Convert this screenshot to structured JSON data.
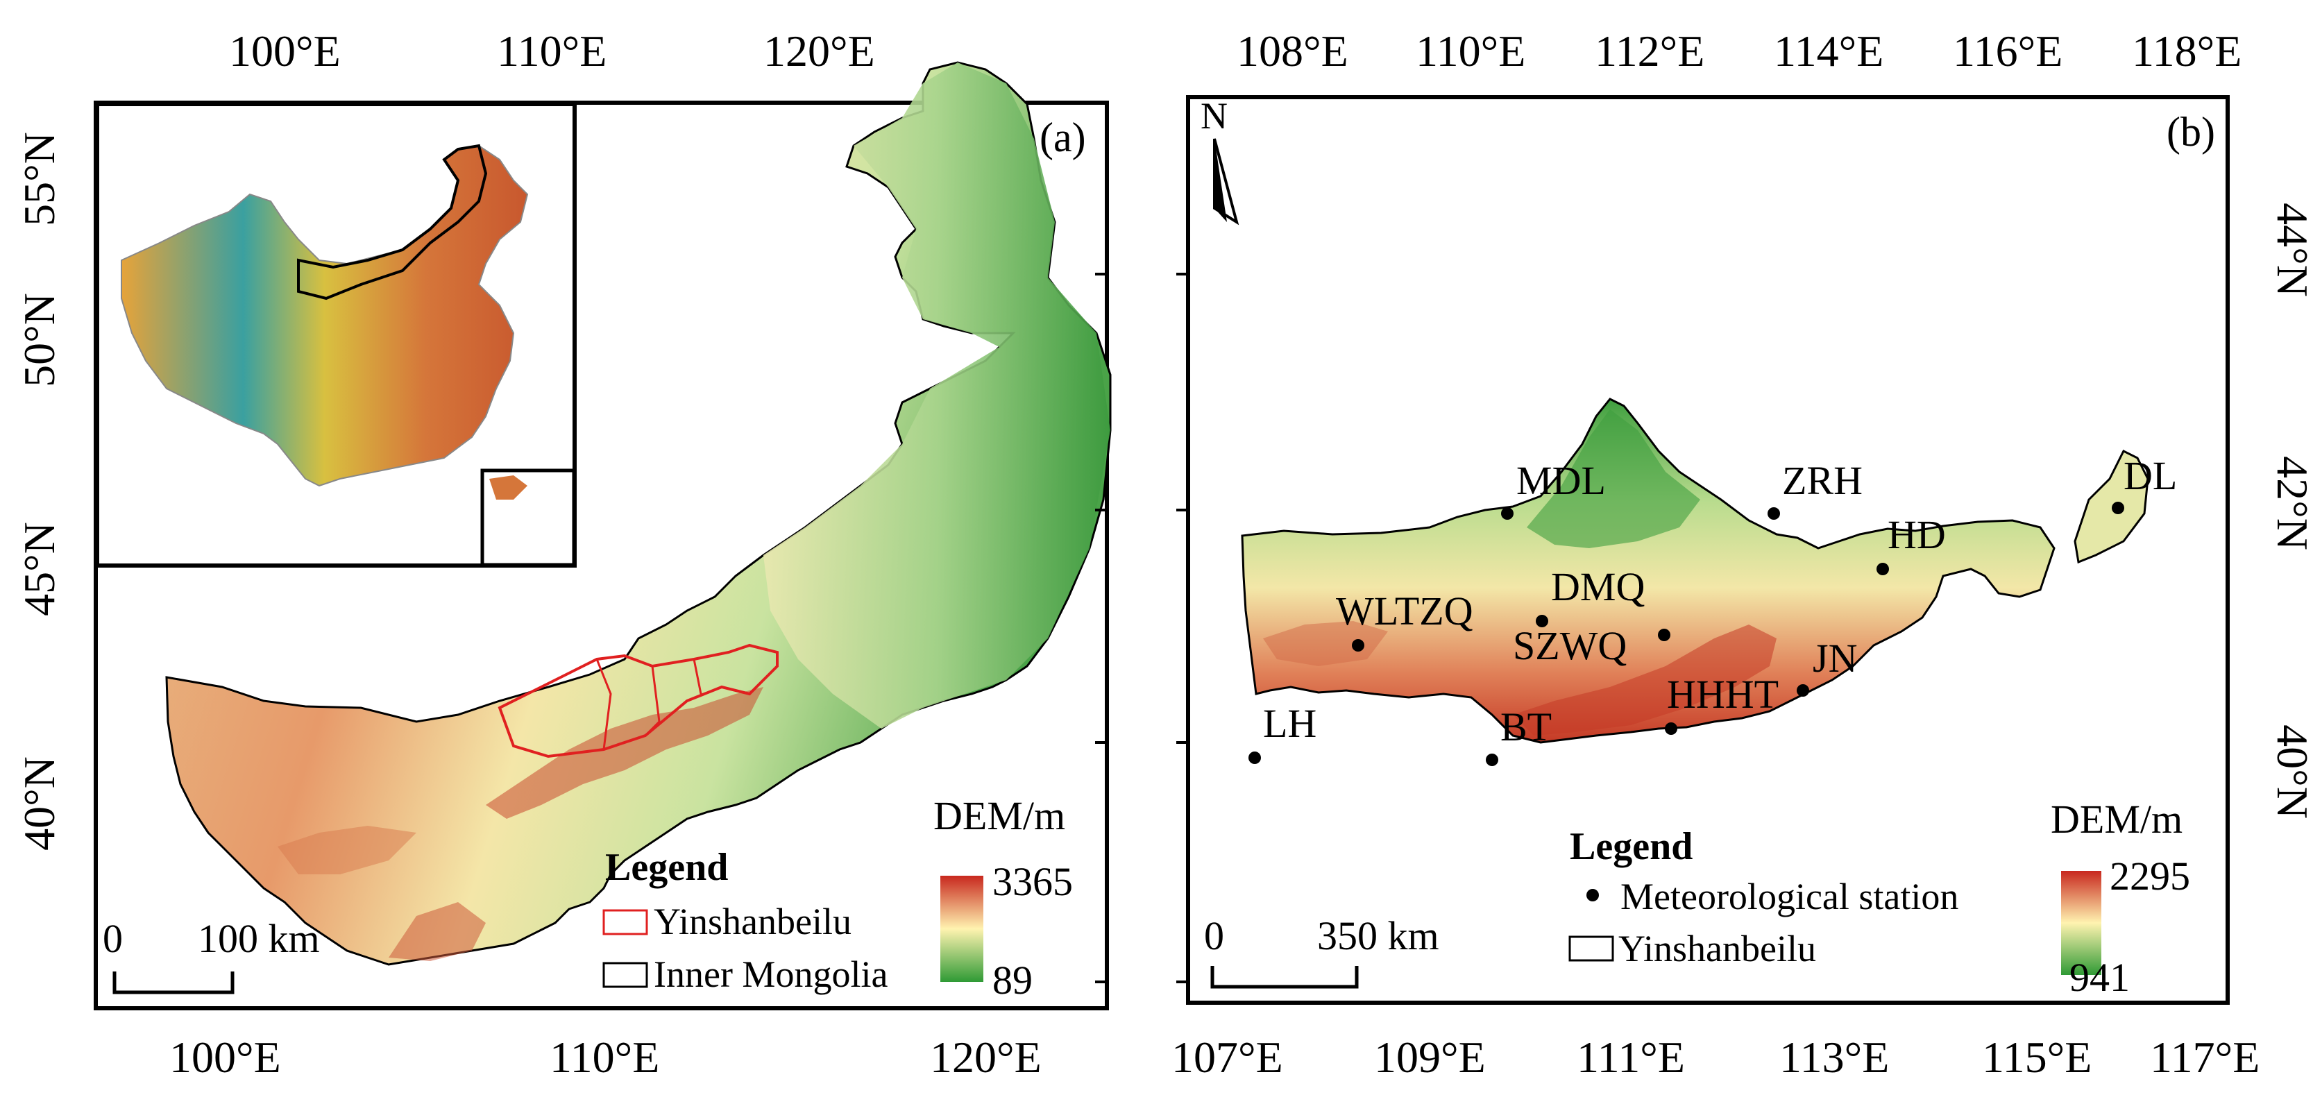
{
  "panel_a": {
    "label": "(a)",
    "top_ticks": [
      "100°E",
      "110°E",
      "120°E"
    ],
    "bottom_ticks": [
      "100°E",
      "110°E",
      "120°E"
    ],
    "left_ticks": [
      "55°N",
      "50°N",
      "45°N",
      "40°N"
    ],
    "legend": {
      "title": "Legend",
      "items": [
        {
          "label": "Yinshanbeilu",
          "color": "#e02020"
        },
        {
          "label": "Inner Mongolia",
          "color": "#000000"
        }
      ]
    },
    "dem": {
      "title": "DEM/m",
      "max": "3365",
      "min": "89"
    },
    "scale_bar": {
      "zero": "0",
      "label": "100 km"
    },
    "inset_region": "China"
  },
  "panel_b": {
    "label": "(b)",
    "top_ticks": [
      "108°E",
      "110°E",
      "112°E",
      "114°E",
      "116°E",
      "118°E"
    ],
    "bottom_ticks": [
      "107°E",
      "109°E",
      "111°E",
      "113°E",
      "115°E",
      "117°E"
    ],
    "right_ticks": [
      "44°N",
      "42°N",
      "40°N"
    ],
    "north_label": "N",
    "stations": [
      {
        "name": "MDL"
      },
      {
        "name": "ZRH"
      },
      {
        "name": "DL"
      },
      {
        "name": "HD"
      },
      {
        "name": "DMQ"
      },
      {
        "name": "WLTZQ"
      },
      {
        "name": "SZWQ"
      },
      {
        "name": "JN"
      },
      {
        "name": "HHHT"
      },
      {
        "name": "LH"
      },
      {
        "name": "BT"
      }
    ],
    "legend": {
      "title": "Legend",
      "station_label": "Meteorological station",
      "boundary_label": "Yinshanbeilu"
    },
    "dem": {
      "title": "DEM/m",
      "max": "2295",
      "min": "941"
    },
    "scale_bar": {
      "zero": "0",
      "label": "350 km"
    }
  },
  "colors": {
    "dem_high": "#c8281e",
    "dem_mid": "#fff3b0",
    "dem_low": "#2f9a35",
    "boundary_red": "#e02020"
  }
}
